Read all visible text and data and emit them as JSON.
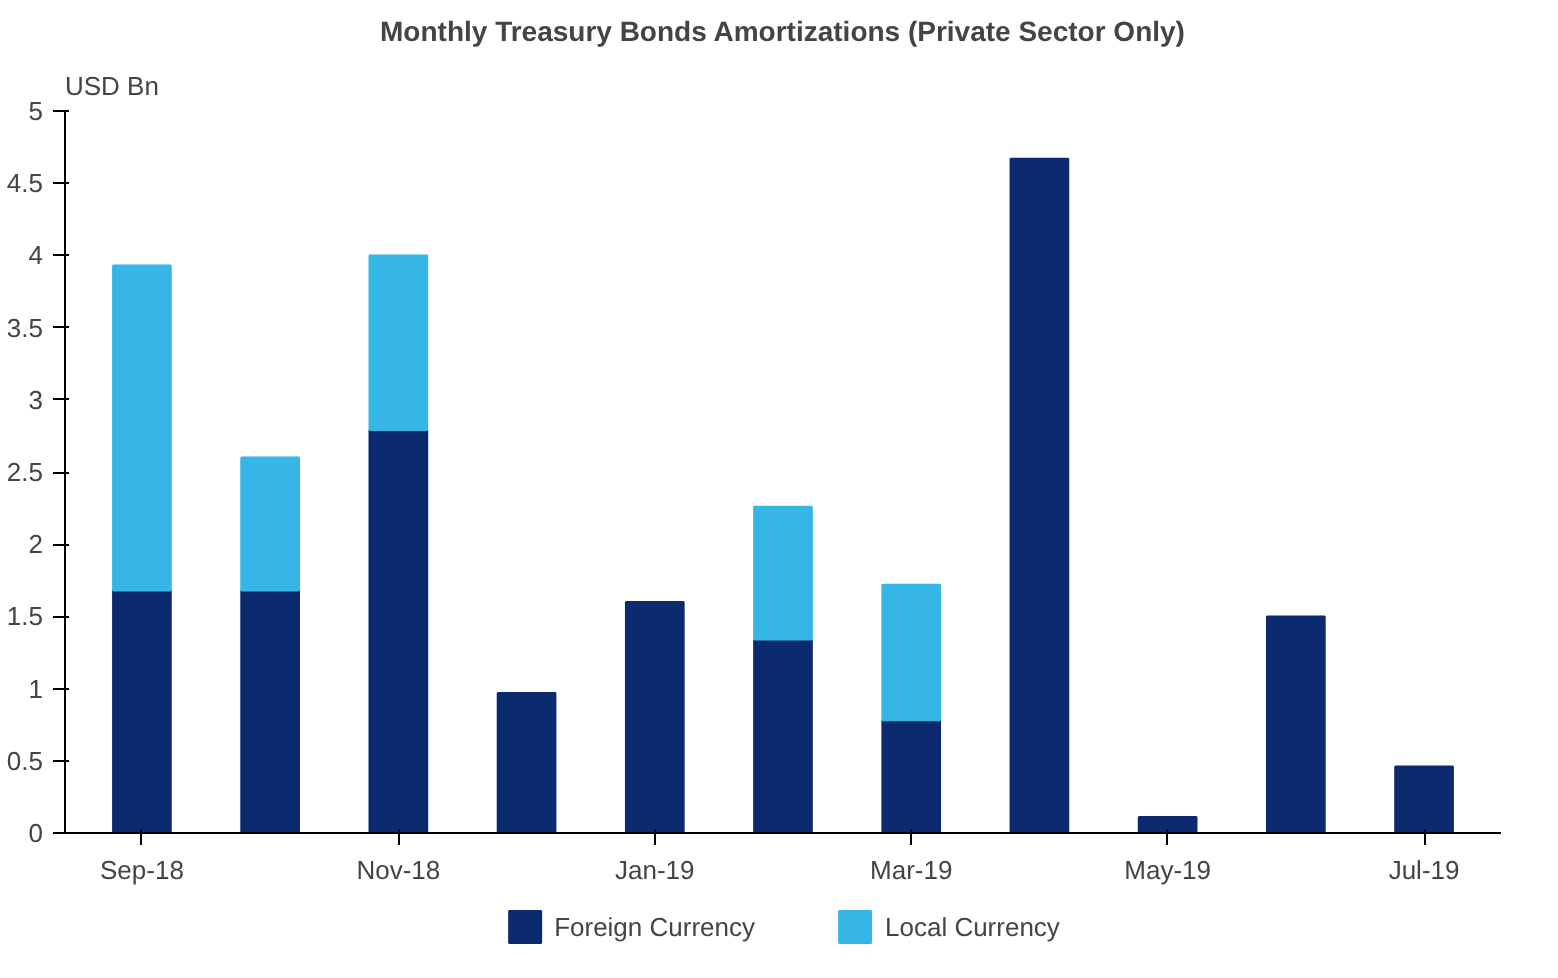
{
  "chart_data": {
    "type": "bar",
    "title": "Monthly Treasury Bonds Amortizations (Private Sector Only)",
    "ylabel": "USD Bn",
    "categories": [
      "Sep-18",
      null,
      "Nov-18",
      null,
      "Jan-19",
      null,
      "Mar-19",
      null,
      "May-19",
      null,
      "Jul-19"
    ],
    "stacked": true,
    "series": [
      {
        "name": "Foreign Currency",
        "color": "#0c2a6e",
        "values": [
          1.68,
          1.68,
          2.79,
          0.97,
          1.6,
          1.34,
          0.78,
          4.67,
          0.11,
          1.5,
          0.46
        ]
      },
      {
        "name": "Local Currency",
        "color": "#35b6e6",
        "values": [
          2.25,
          0.92,
          1.21,
          null,
          null,
          0.92,
          0.94,
          null,
          null,
          null,
          null
        ]
      }
    ],
    "ylim": [
      0,
      5
    ],
    "yticks": [
      0,
      0.5,
      1,
      1.5,
      2,
      2.5,
      3,
      3.5,
      4,
      4.5,
      5
    ],
    "grid": false,
    "legend": "bottom"
  }
}
